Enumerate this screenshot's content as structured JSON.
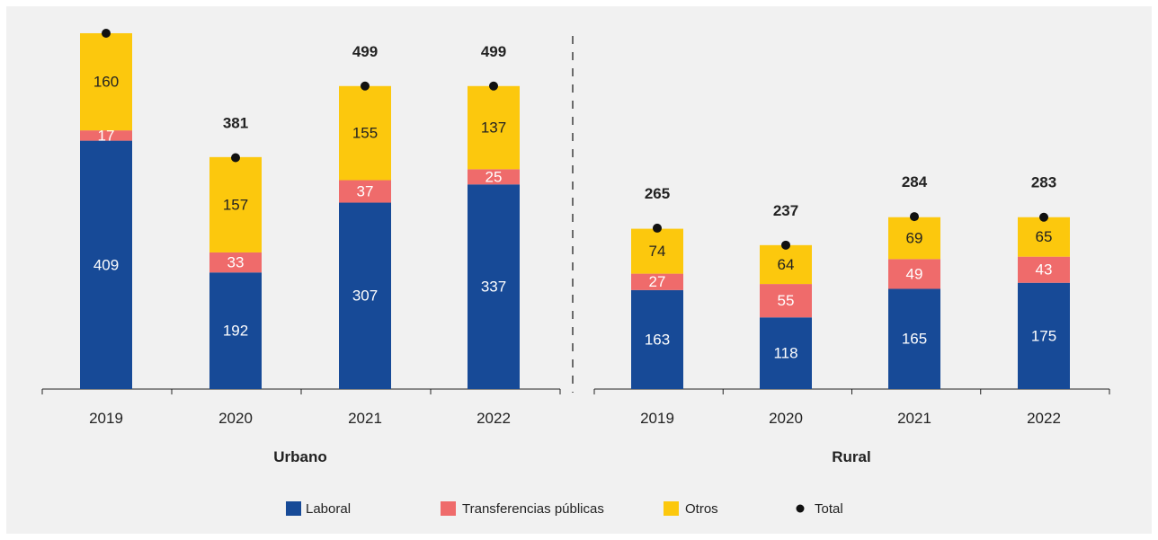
{
  "colors": {
    "Laboral": "#174a97",
    "Transferencias públicas": "#ef6b6b",
    "Otros": "#fcc80d",
    "Total": "#111111",
    "axis": "#222222"
  },
  "chart_data": [
    {
      "type": "bar",
      "stacked": true,
      "panel": "Urbano",
      "categories": [
        "2019",
        "2020",
        "2021",
        "2022"
      ],
      "series": [
        {
          "name": "Laboral",
          "values": [
            409,
            192,
            307,
            337
          ]
        },
        {
          "name": "Transferencias públicas",
          "values": [
            17,
            33,
            37,
            25
          ]
        },
        {
          "name": "Otros",
          "values": [
            160,
            157,
            155,
            137
          ]
        }
      ],
      "totals": {
        "name": "Total",
        "values": [
          586,
          381,
          499,
          499
        ]
      },
      "ylim": [
        0,
        650
      ]
    },
    {
      "type": "bar",
      "stacked": true,
      "panel": "Rural",
      "categories": [
        "2019",
        "2020",
        "2021",
        "2022"
      ],
      "series": [
        {
          "name": "Laboral",
          "values": [
            163,
            118,
            165,
            175
          ]
        },
        {
          "name": "Transferencias públicas",
          "values": [
            27,
            55,
            49,
            43
          ]
        },
        {
          "name": "Otros",
          "values": [
            74,
            64,
            69,
            65
          ]
        }
      ],
      "totals": {
        "name": "Total",
        "values": [
          265,
          237,
          284,
          283
        ]
      },
      "ylim": [
        0,
        650
      ]
    }
  ],
  "legend": {
    "items": [
      "Laboral",
      "Transferencias públicas",
      "Otros",
      "Total"
    ],
    "position": "bottom"
  }
}
